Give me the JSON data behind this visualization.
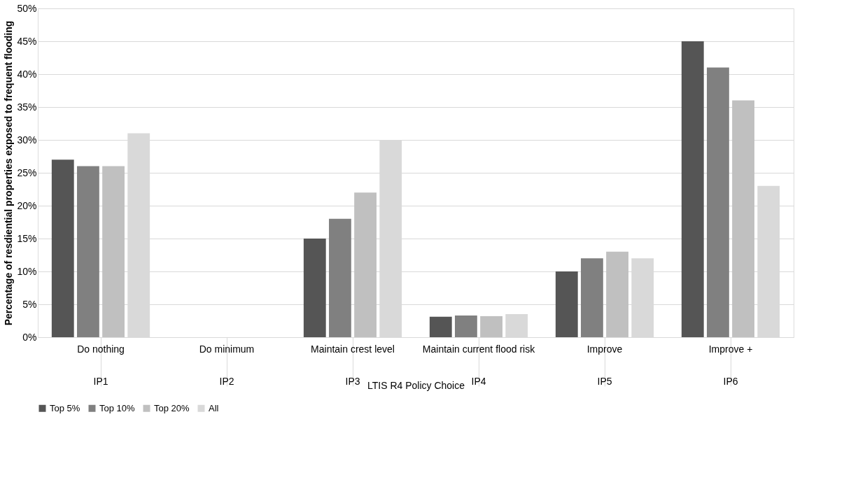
{
  "chart_data": {
    "type": "bar",
    "xlabel": "LTIS R4 Policy Choice",
    "ylabel": "Percentage of resdiential properties exposed to frequent flooding",
    "categories": [
      "Do nothing\nIP1",
      "Do minimum\nIP2",
      "Maintain crest level\nIP3",
      "Maintain current flood risk\nIP4",
      "Improve\nIP5",
      "Improve +\nIP6"
    ],
    "series": [
      {
        "name": "Top 5%",
        "color": "#555555",
        "values": [
          27,
          null,
          15,
          3.1,
          10,
          45
        ]
      },
      {
        "name": "Top 10%",
        "color": "#808080",
        "values": [
          26,
          null,
          18,
          3.3,
          12,
          41
        ]
      },
      {
        "name": "Top 20%",
        "color": "#c0c0c0",
        "values": [
          26,
          null,
          22,
          3.2,
          13,
          36
        ]
      },
      {
        "name": "All",
        "color": "#d9d9d9",
        "values": [
          31,
          null,
          30,
          3.5,
          12,
          23
        ]
      }
    ],
    "ylim": [
      0,
      50
    ],
    "yticks": [
      {
        "value": 0,
        "label": "0%"
      },
      {
        "value": 5,
        "label": "5%"
      },
      {
        "value": 10,
        "label": "10%"
      },
      {
        "value": 15,
        "label": "15%"
      },
      {
        "value": 20,
        "label": "20%"
      },
      {
        "value": 25,
        "label": "25%"
      },
      {
        "value": 30,
        "label": "30%"
      },
      {
        "value": 35,
        "label": "35%"
      },
      {
        "value": 40,
        "label": "40%"
      },
      {
        "value": 45,
        "label": "45%"
      },
      {
        "value": 50,
        "label": "50%"
      }
    ],
    "grid": "y",
    "legend": "bottom"
  }
}
